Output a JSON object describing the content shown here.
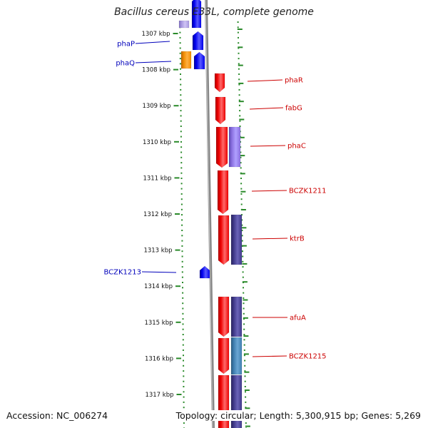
{
  "title": "Bacillus cereus E33L, complete genome",
  "accession": "Accession: NC_006274",
  "topology": "Topology: circular; Length: 5,300,915 bp; Genes: 5,269",
  "colors": {
    "forward_label": "#0000bb",
    "reverse_label": "#cc0000",
    "tick": "#2a8a2a",
    "backbone": "#888888",
    "gene_forward": "#0000ee",
    "gene_reverse": "#ee0000",
    "gene_orange": "#f08c00",
    "gene_lavender": "#8a70e0",
    "gene_navy": "#403a8a",
    "gene_steel": "#3f7fb0",
    "gene_lilac": "#a898e0"
  },
  "ticks": [
    "1307 kbp",
    "1308 kbp",
    "1309 kbp",
    "1310 kbp",
    "1311 kbp",
    "1312 kbp",
    "1313 kbp",
    "1314 kbp",
    "1315 kbp",
    "1316 kbp",
    "1317 kbp"
  ],
  "genes": [
    {
      "label": "phaP",
      "strand": "forward"
    },
    {
      "label": "phaQ",
      "strand": "forward"
    },
    {
      "label": "BCZK1213",
      "strand": "forward"
    },
    {
      "label": "phaR",
      "strand": "reverse"
    },
    {
      "label": "fabG",
      "strand": "reverse"
    },
    {
      "label": "phaC",
      "strand": "reverse"
    },
    {
      "label": "BCZK1211",
      "strand": "reverse"
    },
    {
      "label": "ktrB",
      "strand": "reverse"
    },
    {
      "label": "afuA",
      "strand": "reverse"
    },
    {
      "label": "BCZK1215",
      "strand": "reverse"
    }
  ]
}
